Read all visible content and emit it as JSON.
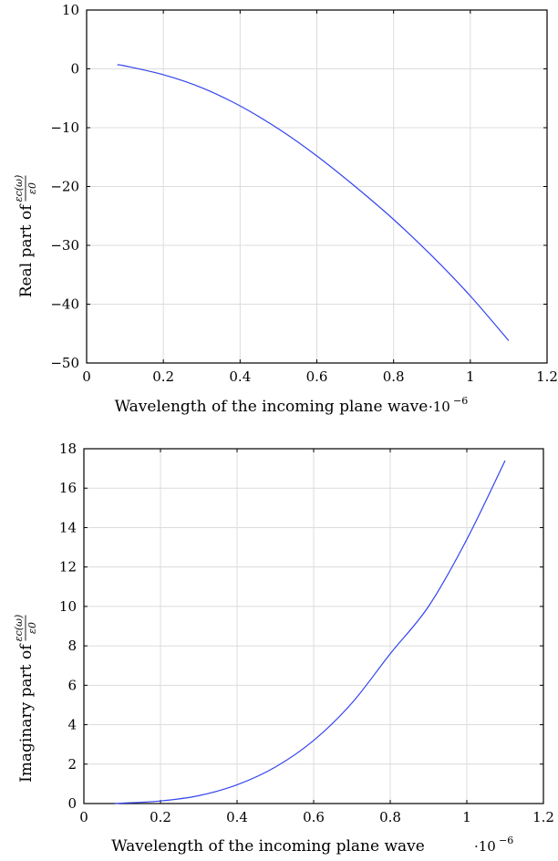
{
  "chart_data": [
    {
      "type": "line",
      "xlabel": "Wavelength of the incoming plane wave",
      "ylabel": "Real part of",
      "ylabel_math_num": "εc(ω)",
      "ylabel_math_den": "ε0",
      "x_multiplier": "·10",
      "x_multiplier_exp": "−6",
      "xlim": [
        0,
        1.2
      ],
      "ylim": [
        -50,
        10
      ],
      "xticks": [
        0,
        0.2,
        0.4,
        0.6,
        0.8,
        1,
        1.2
      ],
      "xtick_labels": [
        "0",
        "0.2",
        "0.4",
        "0.6",
        "0.8",
        "1",
        "1.2"
      ],
      "yticks": [
        10,
        0,
        -10,
        -20,
        -30,
        -40,
        -50
      ],
      "ytick_labels": [
        "10",
        "0",
        "−10",
        "−20",
        "−30",
        "−40",
        "−50"
      ],
      "grid": true,
      "series": [
        {
          "color": "#3344ee",
          "x": [
            0.08,
            0.1,
            0.2,
            0.3,
            0.4,
            0.5,
            0.6,
            0.7,
            0.8,
            0.9,
            1.0,
            1.1
          ],
          "y": [
            0.7,
            0.5,
            -1.0,
            -3.2,
            -6.3,
            -10.2,
            -14.8,
            -20.0,
            -25.6,
            -31.8,
            -38.6,
            -46.2
          ]
        }
      ]
    },
    {
      "type": "line",
      "xlabel": "Wavelength of the incoming plane wave",
      "ylabel": "Imaginary part of",
      "ylabel_math_num": "εc(ω)",
      "ylabel_math_den": "ε0",
      "x_multiplier": "·10",
      "x_multiplier_exp": "−6",
      "xlim": [
        0,
        1.2
      ],
      "ylim": [
        0,
        18
      ],
      "xticks": [
        0,
        0.2,
        0.4,
        0.6,
        0.8,
        1,
        1.2
      ],
      "xtick_labels": [
        "0",
        "0.2",
        "0.4",
        "0.6",
        "0.8",
        "1",
        "1.2"
      ],
      "yticks": [
        18,
        16,
        14,
        12,
        10,
        8,
        6,
        4,
        2,
        0
      ],
      "ytick_labels": [
        "18",
        "16",
        "14",
        "12",
        "10",
        "8",
        "6",
        "4",
        "2",
        "0"
      ],
      "grid": true,
      "series": [
        {
          "color": "#3344ee",
          "x": [
            0.08,
            0.1,
            0.2,
            0.3,
            0.4,
            0.5,
            0.6,
            0.7,
            0.8,
            0.9,
            1.0,
            1.1
          ],
          "y": [
            0.0,
            0.02,
            0.13,
            0.4,
            0.95,
            1.85,
            3.2,
            5.1,
            7.6,
            10.0,
            13.4,
            17.4
          ]
        }
      ]
    }
  ]
}
